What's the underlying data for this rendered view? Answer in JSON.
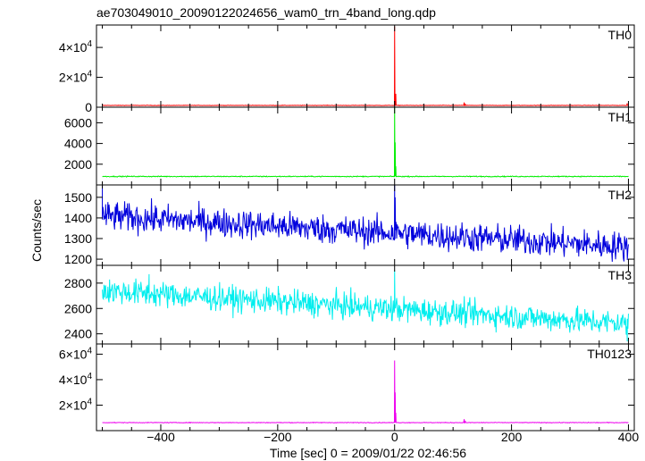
{
  "title": "ae703049010_20090122024656_wam0_trn_4band_long.qdp",
  "chart_data": {
    "type": "line",
    "title": "ae703049010_20090122024656_wam0_trn_4band_long.qdp",
    "xlabel": "Time [sec] 0 = 2009/01/22 02:46:56",
    "ylabel": "Counts/sec",
    "xlim": [
      -510,
      410
    ],
    "x_ticks": [
      {
        "value": -400,
        "label": "−400"
      },
      {
        "value": -200,
        "label": "−200"
      },
      {
        "value": 0,
        "label": "0"
      },
      {
        "value": 200,
        "label": "200"
      },
      {
        "value": 400,
        "label": "400"
      }
    ],
    "grid": false,
    "panels": [
      {
        "name": "TH0",
        "color": "#ff0000",
        "ylim": [
          0,
          55000
        ],
        "y_ticks": [
          {
            "value": 0,
            "label": "0",
            "mant": "",
            "exp": ""
          },
          {
            "value": 20000,
            "label": "",
            "mant": "2×10",
            "exp": "4"
          },
          {
            "value": 40000,
            "label": "",
            "mant": "4×10",
            "exp": "4"
          }
        ],
        "data_start": -500,
        "data_end": 400,
        "baseline": 1200,
        "noise": 150,
        "trend": 0,
        "spikes": [
          {
            "x": 0,
            "y": 54000
          },
          {
            "x": 2,
            "y": 9000
          },
          {
            "x": 119,
            "y": 3200
          },
          {
            "x": 121,
            "y": 2400
          },
          {
            "x": 398,
            "y": 2600
          }
        ]
      },
      {
        "name": "TH1",
        "color": "#00ee00",
        "ylim": [
          0,
          7500
        ],
        "y_ticks": [
          {
            "value": 2000,
            "label": "2000",
            "mant": "",
            "exp": ""
          },
          {
            "value": 4000,
            "label": "4000",
            "mant": "",
            "exp": ""
          },
          {
            "value": 6000,
            "label": "6000",
            "mant": "",
            "exp": ""
          }
        ],
        "data_start": -500,
        "data_end": 400,
        "baseline": 820,
        "noise": 45,
        "trend": 0,
        "spikes": [
          {
            "x": 0,
            "y": 7600
          },
          {
            "x": 1,
            "y": 4100
          },
          {
            "x": 2,
            "y": 1800
          }
        ]
      },
      {
        "name": "TH2",
        "color": "#0000dd",
        "ylim": [
          1170,
          1560
        ],
        "y_ticks": [
          {
            "value": 1200,
            "label": "1200",
            "mant": "",
            "exp": ""
          },
          {
            "value": 1300,
            "label": "1300",
            "mant": "",
            "exp": ""
          },
          {
            "value": 1400,
            "label": "1400",
            "mant": "",
            "exp": ""
          },
          {
            "value": 1500,
            "label": "1500",
            "mant": "",
            "exp": ""
          }
        ],
        "data_start": -500,
        "data_end": 400,
        "baseline": 1410,
        "noise": 70,
        "trend": -150,
        "spikes": [
          {
            "x": -500,
            "y": 1565
          },
          {
            "x": 0,
            "y": 1565
          },
          {
            "x": 1,
            "y": 1500
          }
        ]
      },
      {
        "name": "TH3",
        "color": "#00eeee",
        "ylim": [
          2320,
          2940
        ],
        "y_ticks": [
          {
            "value": 2400,
            "label": "2400",
            "mant": "",
            "exp": ""
          },
          {
            "value": 2600,
            "label": "2600",
            "mant": "",
            "exp": ""
          },
          {
            "value": 2800,
            "label": "2800",
            "mant": "",
            "exp": ""
          }
        ],
        "data_start": -500,
        "data_end": 400,
        "baseline": 2740,
        "noise": 100,
        "trend": -260,
        "spikes": [
          {
            "x": -420,
            "y": 2870
          },
          {
            "x": 0,
            "y": 2900
          },
          {
            "x": 398,
            "y": 2340
          }
        ]
      },
      {
        "name": "TH0123",
        "color": "#ee00ee",
        "ylim": [
          0,
          68000
        ],
        "y_ticks": [
          {
            "value": 20000,
            "label": "",
            "mant": "2×10",
            "exp": "4"
          },
          {
            "value": 40000,
            "label": "",
            "mant": "4×10",
            "exp": "4"
          },
          {
            "value": 60000,
            "label": "",
            "mant": "6×10",
            "exp": "4"
          }
        ],
        "data_start": -500,
        "data_end": 400,
        "baseline": 6300,
        "noise": 250,
        "trend": 0,
        "spikes": [
          {
            "x": 0,
            "y": 55000
          },
          {
            "x": 1,
            "y": 30000
          },
          {
            "x": 2,
            "y": 14000
          },
          {
            "x": 119,
            "y": 9000
          },
          {
            "x": 121,
            "y": 7800
          }
        ]
      }
    ]
  }
}
